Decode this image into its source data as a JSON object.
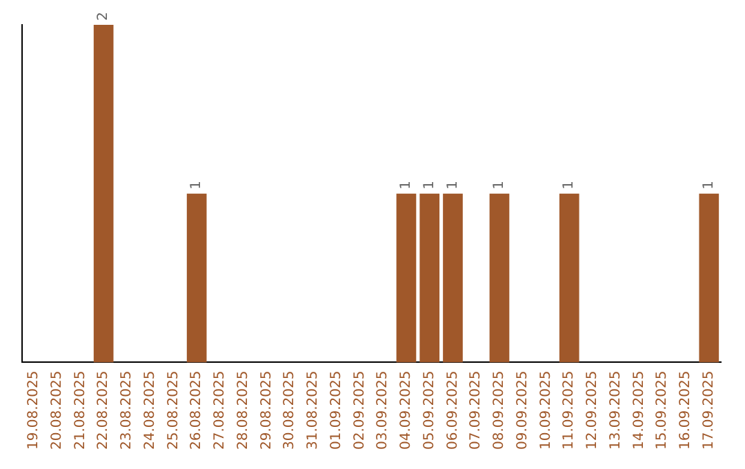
{
  "chart_data": {
    "type": "bar",
    "categories": [
      "19.08.2025",
      "20.08.2025",
      "21.08.2025",
      "22.08.2025",
      "23.08.2025",
      "24.08.2025",
      "25.08.2025",
      "26.08.2025",
      "27.08.2025",
      "28.08.2025",
      "29.08.2025",
      "30.08.2025",
      "31.08.2025",
      "01.09.2025",
      "02.09.2025",
      "03.09.2025",
      "04.09.2025",
      "05.09.2025",
      "06.09.2025",
      "07.09.2025",
      "08.09.2025",
      "09.09.2025",
      "10.09.2025",
      "11.09.2025",
      "12.09.2025",
      "13.09.2025",
      "14.09.2025",
      "15.09.2025",
      "16.09.2025",
      "17.09.2025"
    ],
    "values": [
      0,
      0,
      0,
      2,
      0,
      0,
      0,
      1,
      0,
      0,
      0,
      0,
      0,
      0,
      0,
      0,
      1,
      1,
      1,
      0,
      1,
      0,
      0,
      1,
      0,
      0,
      0,
      0,
      0,
      1
    ],
    "value_labels": [
      null,
      null,
      null,
      "2",
      null,
      null,
      null,
      "1",
      null,
      null,
      null,
      null,
      null,
      null,
      null,
      null,
      "1",
      "1",
      "1",
      null,
      "1",
      null,
      null,
      "1",
      null,
      null,
      null,
      null,
      null,
      "1"
    ],
    "color": "#a0582a",
    "grid": false,
    "legend": false,
    "tick_labels": "x"
  }
}
